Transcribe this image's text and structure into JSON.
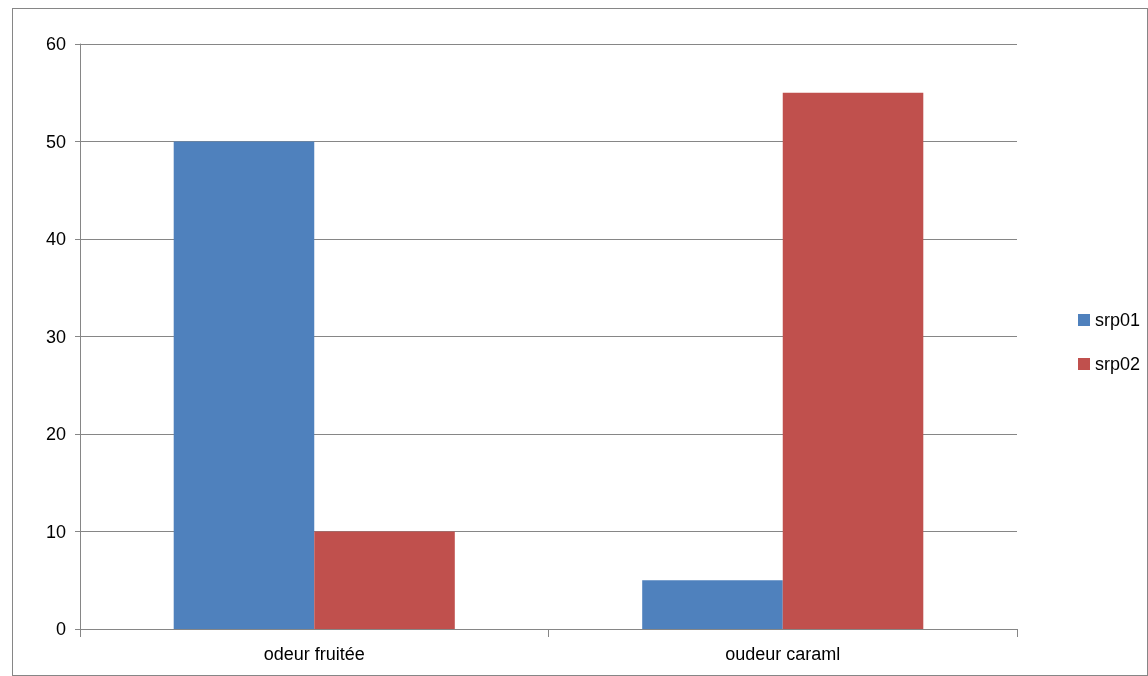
{
  "chart_data": {
    "type": "bar",
    "categories": [
      "odeur fruitée",
      "oudeur caraml"
    ],
    "series": [
      {
        "name": "srp01",
        "color": "#4f81bd",
        "values": [
          50,
          5
        ]
      },
      {
        "name": "srp02",
        "color": "#c0504d",
        "values": [
          10,
          55
        ]
      }
    ],
    "ylim": [
      0,
      60
    ],
    "yticks": [
      0,
      10,
      20,
      30,
      40,
      50,
      60
    ],
    "grid": "y",
    "legend": "right"
  }
}
